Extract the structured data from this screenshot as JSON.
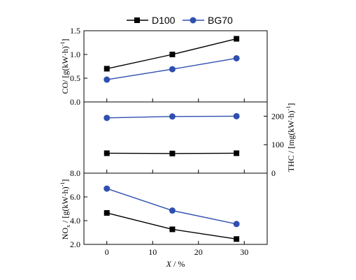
{
  "legend": {
    "s1": "D100",
    "s2": "BG70"
  },
  "colors": {
    "d100": "#000000",
    "bg70": "#2f4fb0"
  },
  "chart_data": [
    {
      "panel": "top",
      "type": "line",
      "ylabel_main": "CO",
      "ylabel_unit": "/ [g(kW·h)",
      "ylabel_sup": "-1",
      "ylabel_close": "]",
      "ylim": [
        0,
        1.5
      ],
      "yticks": [
        "0.0",
        "0.5",
        "1.0",
        "1.5"
      ],
      "ytick_values": [
        0,
        0.5,
        1.0,
        1.5
      ],
      "x": [
        0,
        14.3,
        28.3
      ],
      "series": [
        {
          "name": "D100",
          "values": [
            0.7,
            1.0,
            1.33
          ]
        },
        {
          "name": "BG70",
          "values": [
            0.47,
            0.69,
            0.92
          ]
        }
      ]
    },
    {
      "panel": "middle",
      "type": "line",
      "y2label_main": "THC",
      "y2label_unit": "/ [mg(kW·h)",
      "y2label_sup": "-1",
      "y2label_close": "]",
      "ylim": [
        0,
        250
      ],
      "yticks": [
        "0",
        "100",
        "200"
      ],
      "ytick_values": [
        0,
        100,
        200
      ],
      "x": [
        0,
        14.3,
        28.3
      ],
      "series": [
        {
          "name": "D100",
          "values": [
            70,
            69,
            70
          ]
        },
        {
          "name": "BG70",
          "values": [
            194,
            199,
            200
          ]
        }
      ]
    },
    {
      "panel": "bottom",
      "type": "line",
      "ylabel_main": "NO",
      "ylabel_sub": "x",
      "ylabel_unit": " / [g(kW·h)",
      "ylabel_sup": "-1",
      "ylabel_close": "]",
      "ylim": [
        2,
        8
      ],
      "yticks": [
        "2.0",
        "4.0",
        "6.0",
        "8.0"
      ],
      "ytick_values": [
        2,
        4,
        6,
        8
      ],
      "xlabel_var": "X",
      "xlabel_unit": " / %",
      "xlim": [
        -5,
        35
      ],
      "xticks": [
        "0",
        "10",
        "20",
        "30"
      ],
      "xtick_values": [
        0,
        10,
        20,
        30
      ],
      "x": [
        0,
        14.3,
        28.3
      ],
      "series": [
        {
          "name": "D100",
          "values": [
            4.65,
            3.27,
            2.45
          ]
        },
        {
          "name": "BG70",
          "values": [
            6.7,
            4.85,
            3.72
          ]
        }
      ]
    }
  ]
}
